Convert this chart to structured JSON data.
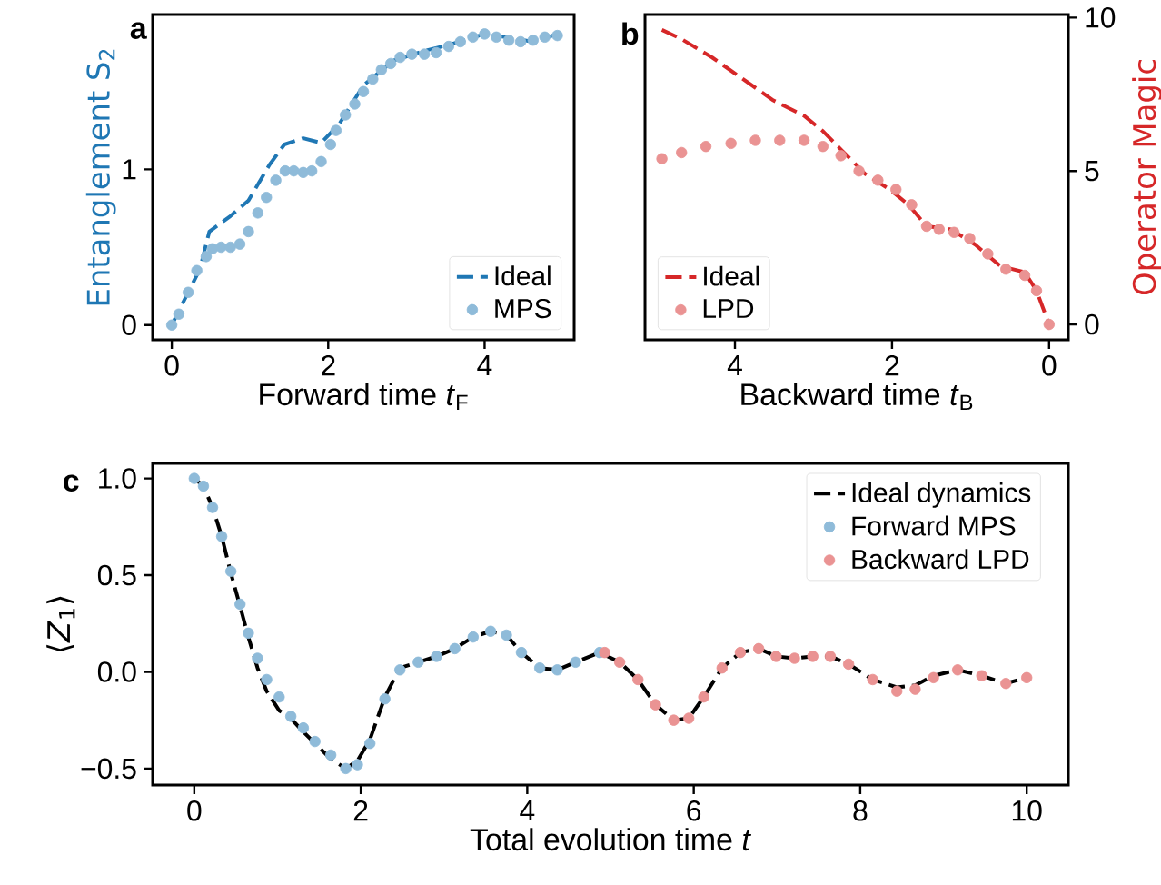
{
  "chart_data": [
    {
      "type": "line",
      "title": "a",
      "xlabel": "Forward time *t*$_{F}$",
      "ylabel": "Entanglement S$_{2}$",
      "xlim": [
        -0.245,
        5.145
      ],
      "ylim": [
        -0.095,
        1.995
      ],
      "xticks": [
        0,
        2,
        4
      ],
      "yticks": [
        0,
        1
      ],
      "legend": "bottom right",
      "series": [
        {
          "name": "Ideal",
          "line_style": "dashed",
          "color": "#1f77b4",
          "x": [
            0,
            0.36,
            0.48,
            0.75,
            0.98,
            1.25,
            1.44,
            1.68,
            1.91,
            2.14,
            2.45,
            2.84,
            3.22,
            3.54,
            4.0,
            4.39,
            4.62,
            4.93
          ],
          "values": [
            0,
            0.36,
            0.6,
            0.7,
            0.8,
            1.03,
            1.16,
            1.2,
            1.17,
            1.29,
            1.54,
            1.7,
            1.76,
            1.8,
            1.87,
            1.84,
            1.82,
            1.87
          ]
        },
        {
          "name": "MPS",
          "type": "scatter",
          "marker": "circle",
          "color": "#8fbbd9",
          "x": [
            0,
            0.09,
            0.21,
            0.32,
            0.44,
            0.52,
            0.63,
            0.75,
            0.87,
            0.98,
            1.1,
            1.21,
            1.33,
            1.45,
            1.56,
            1.68,
            1.79,
            1.91,
            2.03,
            2.1,
            2.22,
            2.34,
            2.45,
            2.57,
            2.68,
            2.8,
            2.92,
            3.07,
            3.23,
            3.38,
            3.54,
            3.69,
            3.85,
            4.0,
            4.15,
            4.31,
            4.46,
            4.62,
            4.77,
            4.93
          ],
          "values": [
            0,
            0.07,
            0.21,
            0.35,
            0.44,
            0.49,
            0.5,
            0.5,
            0.52,
            0.6,
            0.72,
            0.82,
            0.93,
            0.99,
            0.99,
            0.98,
            0.99,
            1.05,
            1.16,
            1.25,
            1.35,
            1.42,
            1.5,
            1.58,
            1.64,
            1.68,
            1.72,
            1.74,
            1.74,
            1.75,
            1.79,
            1.82,
            1.85,
            1.87,
            1.85,
            1.83,
            1.82,
            1.83,
            1.85,
            1.86
          ]
        }
      ]
    },
    {
      "type": "line",
      "title": "b",
      "xlabel": "Backward time *t*$_{B}$",
      "ylabel": "Operator Magic",
      "xlim": [
        5.145,
        -0.245
      ],
      "ylim": [
        -0.5,
        10.1
      ],
      "xticks": [
        0,
        2,
        4
      ],
      "yticks": [
        0,
        5,
        10
      ],
      "legend": "bottom left",
      "series": [
        {
          "name": "Ideal",
          "line_style": "dashed",
          "color": "#d62728",
          "x": [
            4.93,
            4.68,
            4.29,
            3.9,
            3.51,
            3.12,
            2.88,
            2.65,
            2.34,
            2.03,
            1.79,
            1.56,
            1.25,
            0.94,
            0.62,
            0.31,
            0.16,
            0
          ],
          "values": [
            9.6,
            9.3,
            8.7,
            8.0,
            7.3,
            6.8,
            6.3,
            5.7,
            4.9,
            4.4,
            3.9,
            3.2,
            3.1,
            2.6,
            1.9,
            1.7,
            1.1,
            0
          ]
        },
        {
          "name": "LPD",
          "type": "scatter",
          "marker": "circle",
          "color": "#ea9393",
          "x": [
            4.93,
            4.68,
            4.37,
            4.05,
            3.74,
            3.43,
            3.12,
            2.88,
            2.65,
            2.42,
            2.18,
            1.95,
            1.75,
            1.56,
            1.4,
            1.21,
            1.01,
            0.78,
            0.55,
            0.31,
            0.16,
            0
          ],
          "values": [
            5.4,
            5.6,
            5.8,
            5.9,
            6.0,
            6.0,
            6.0,
            5.8,
            5.5,
            5.0,
            4.7,
            4.4,
            3.9,
            3.2,
            3.1,
            3.0,
            2.8,
            2.3,
            1.8,
            1.6,
            1.1,
            0
          ]
        }
      ]
    },
    {
      "type": "line",
      "title": "c",
      "xlabel": "Total evolution time *t*",
      "ylabel": "⟨*Z*$_{1}$⟩",
      "xlim": [
        -0.5,
        10.5
      ],
      "ylim": [
        -0.585,
        1.078
      ],
      "xticks": [
        0,
        2,
        4,
        6,
        8,
        10
      ],
      "yticks": [
        {
          "value": -0.5,
          "label": "−0.5"
        },
        {
          "value": 0,
          "label": "0.0"
        },
        {
          "value": 0.5,
          "label": "0.5"
        },
        {
          "value": 1,
          "label": "1.0"
        }
      ],
      "legend": "top right",
      "series": [
        {
          "name": "Ideal dynamics",
          "line_style": "dashed",
          "color": "#000000",
          "x": [
            0,
            0.11,
            0.22,
            0.33,
            0.44,
            0.55,
            0.65,
            0.76,
            0.87,
            1.02,
            1.16,
            1.31,
            1.45,
            1.64,
            1.82,
            1.96,
            2.11,
            2.29,
            2.47,
            2.69,
            2.91,
            3.13,
            3.35,
            3.56,
            3.75,
            3.93,
            4.15,
            4.36,
            4.58,
            4.87,
            5.11,
            5.33,
            5.54,
            5.76,
            5.94,
            6.12,
            6.34,
            6.56,
            6.78,
            6.99,
            7.21,
            7.43,
            7.64,
            7.86,
            8.15,
            8.44,
            8.66,
            8.88,
            9.17,
            9.46,
            9.75,
            10
          ],
          "values": [
            1.0,
            0.96,
            0.85,
            0.7,
            0.51,
            0.34,
            0.18,
            0.02,
            -0.1,
            -0.2,
            -0.24,
            -0.31,
            -0.37,
            -0.45,
            -0.5,
            -0.46,
            -0.35,
            -0.13,
            0.02,
            0.05,
            0.08,
            0.12,
            0.18,
            0.21,
            0.19,
            0.1,
            0.02,
            0.01,
            0.05,
            0.1,
            0.05,
            -0.04,
            -0.17,
            -0.25,
            -0.24,
            -0.13,
            0.02,
            0.1,
            0.12,
            0.08,
            0.07,
            0.08,
            0.08,
            0.04,
            -0.04,
            -0.08,
            -0.07,
            -0.02,
            0.01,
            -0.02,
            -0.06,
            -0.03
          ]
        },
        {
          "name": "Forward MPS",
          "type": "scatter",
          "marker": "circle",
          "color": "#8fbbd9",
          "x": [
            0,
            0.11,
            0.22,
            0.33,
            0.44,
            0.55,
            0.65,
            0.76,
            0.87,
            1.02,
            1.16,
            1.31,
            1.45,
            1.64,
            1.82,
            1.96,
            2.11,
            2.29,
            2.47,
            2.69,
            2.91,
            3.13,
            3.35,
            3.56,
            3.75,
            3.93,
            4.15,
            4.36,
            4.58,
            4.87
          ],
          "values": [
            1.0,
            0.96,
            0.85,
            0.7,
            0.52,
            0.35,
            0.2,
            0.07,
            -0.04,
            -0.13,
            -0.23,
            -0.29,
            -0.36,
            -0.43,
            -0.5,
            -0.48,
            -0.37,
            -0.14,
            0.01,
            0.05,
            0.08,
            0.12,
            0.18,
            0.21,
            0.19,
            0.1,
            0.02,
            0.01,
            0.05,
            0.1
          ]
        },
        {
          "name": "Backward LPD",
          "type": "scatter",
          "marker": "circle",
          "color": "#ea9393",
          "x": [
            4.93,
            5.11,
            5.33,
            5.54,
            5.76,
            5.94,
            6.12,
            6.34,
            6.56,
            6.78,
            6.99,
            7.21,
            7.43,
            7.64,
            7.86,
            8.15,
            8.44,
            8.66,
            8.88,
            9.17,
            9.46,
            9.75,
            10
          ],
          "values": [
            0.1,
            0.05,
            -0.04,
            -0.17,
            -0.25,
            -0.24,
            -0.13,
            0.02,
            0.1,
            0.12,
            0.08,
            0.07,
            0.08,
            0.08,
            0.04,
            -0.04,
            -0.1,
            -0.09,
            -0.03,
            0.01,
            -0.02,
            -0.06,
            -0.03
          ]
        }
      ]
    }
  ]
}
